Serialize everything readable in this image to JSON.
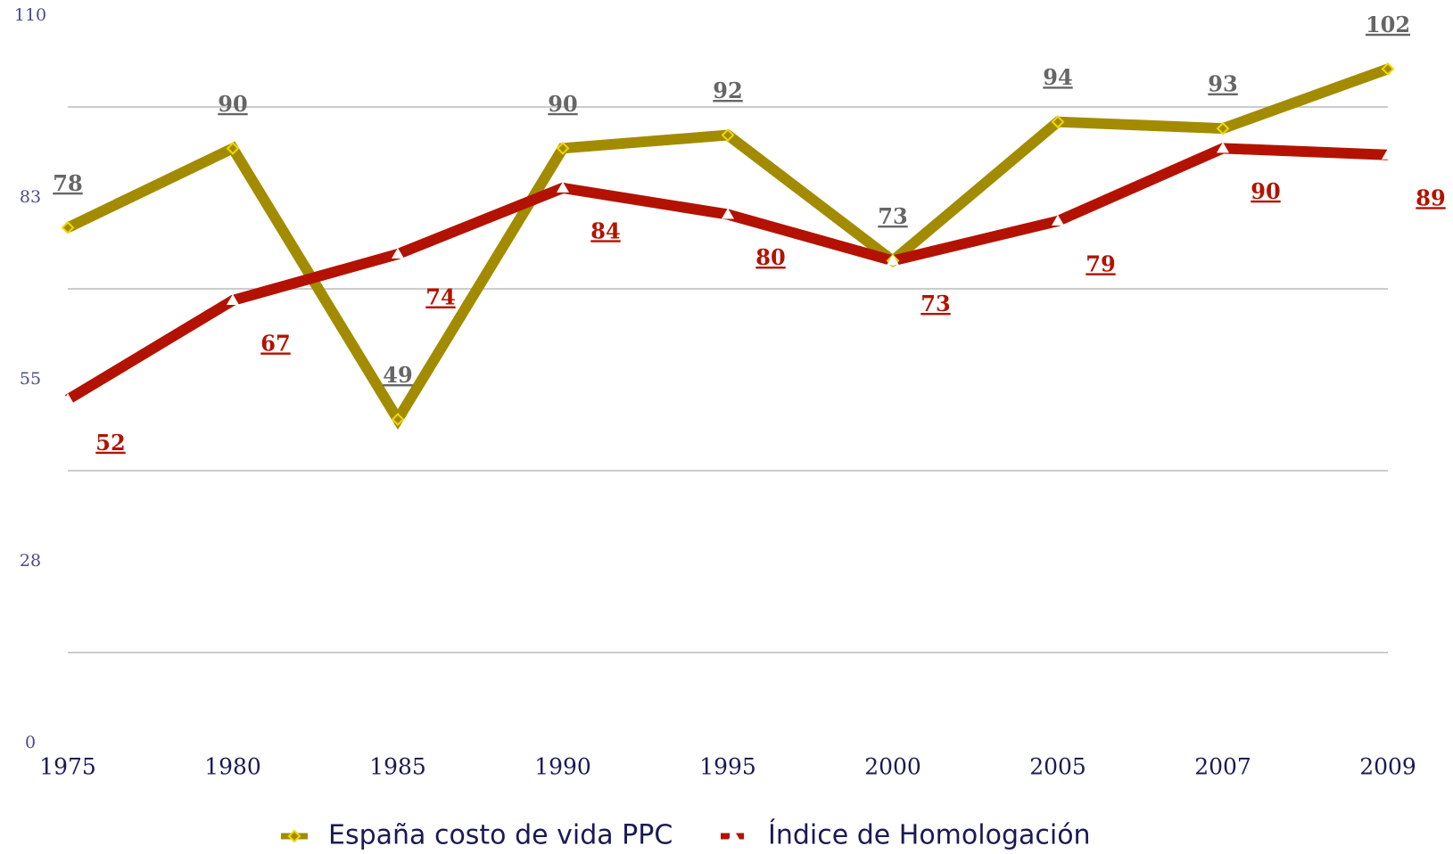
{
  "chart_data": {
    "type": "line",
    "categories": [
      "1975",
      "1980",
      "1985",
      "1990",
      "1995",
      "2000",
      "2005",
      "2007",
      "2009"
    ],
    "series": [
      {
        "name": "España costo de vida PPC",
        "color": "#a38b00",
        "label_color": "#666666",
        "values": [
          78,
          90,
          49,
          90,
          92,
          73,
          94,
          93,
          102
        ]
      },
      {
        "name": "Índice de Homologación",
        "color": "#b31200",
        "label_color": "#b31200",
        "values": [
          52,
          67,
          74,
          84,
          80,
          73,
          79,
          90,
          89
        ]
      }
    ],
    "ylim": [
      0,
      110
    ],
    "yticks": [
      0,
      {
        "value": 27.5,
        "label": "28"
      },
      55,
      {
        "value": 82.5,
        "label": "83"
      },
      110
    ],
    "minor_yticks": [
      13.75,
      41.25,
      68.75,
      96.25
    ],
    "grid": true,
    "legend": "bottom"
  }
}
